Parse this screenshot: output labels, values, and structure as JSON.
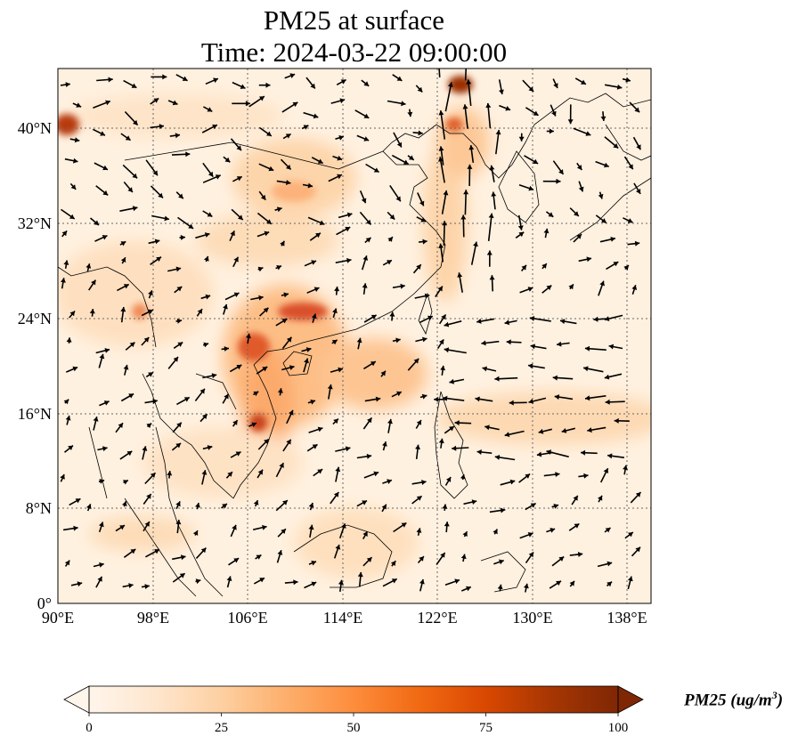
{
  "title": {
    "line1": "PM25 at surface",
    "line2": "Time: 2024-03-22 09:00:00"
  },
  "map": {
    "lon_range": [
      90,
      140
    ],
    "lat_range": [
      0,
      45
    ],
    "lon_ticks": [
      "90°E",
      "98°E",
      "106°E",
      "114°E",
      "122°E",
      "130°E",
      "138°E"
    ],
    "lat_ticks": [
      "0°",
      "8°N",
      "16°N",
      "24°N",
      "32°N",
      "40°N"
    ],
    "gridlines": true,
    "variable": "PM25",
    "overlay": "wind vectors"
  },
  "colorbar": {
    "label_main": "PM25 (ug/m",
    "label_exp": "3",
    "label_end": ")",
    "ticks": [
      "0",
      "25",
      "50",
      "75",
      "100"
    ],
    "range": [
      0,
      100
    ],
    "extend": "both",
    "colormap": [
      "#fff5eb",
      "#fee6ce",
      "#fdd0a2",
      "#fdae6b",
      "#fd8d3c",
      "#f16913",
      "#d94801",
      "#a63603",
      "#7f2704"
    ]
  }
}
